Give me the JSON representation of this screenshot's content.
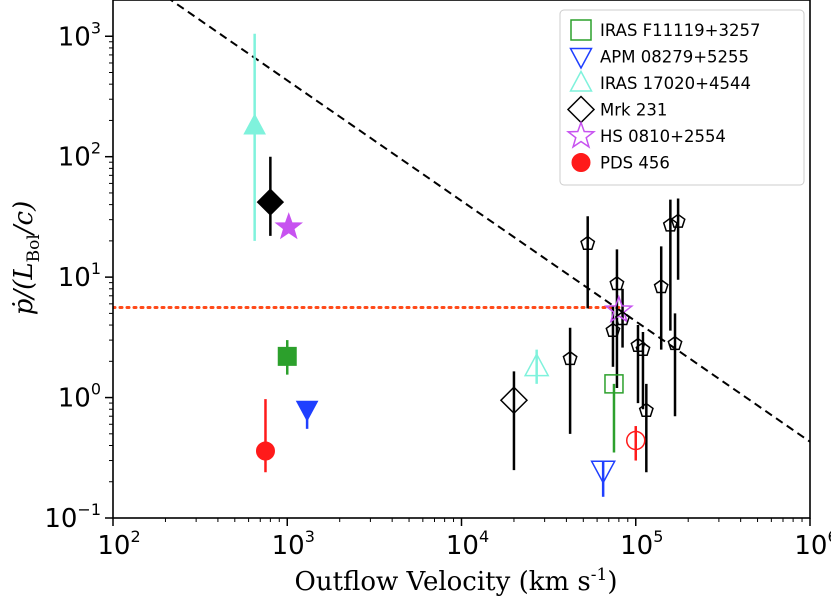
{
  "chart_data": {
    "type": "scatter",
    "xscale": "log",
    "yscale": "log",
    "xlim": [
      100,
      1000000
    ],
    "ylim": [
      0.1,
      2000
    ],
    "xlabel_main": "Outflow Velocity (km s",
    "xlabel_sup": "-1",
    "xlabel_end": ")",
    "ylabel_parts": [
      "ṗ/(L",
      "Bol",
      "/c)"
    ],
    "xticks": [
      {
        "value": 100,
        "base": "10",
        "exp": "2"
      },
      {
        "value": 1000,
        "base": "10",
        "exp": "3"
      },
      {
        "value": 10000,
        "base": "10",
        "exp": "4"
      },
      {
        "value": 100000,
        "base": "10",
        "exp": "5"
      },
      {
        "value": 1000000,
        "base": "10",
        "exp": "6"
      }
    ],
    "yticks": [
      {
        "value": 0.1,
        "base": "10",
        "exp": "−1"
      },
      {
        "value": 1,
        "base": "10",
        "exp": "0"
      },
      {
        "value": 10,
        "base": "10",
        "exp": "1"
      },
      {
        "value": 100,
        "base": "10",
        "exp": "2"
      },
      {
        "value": 1000,
        "base": "10",
        "exp": "3"
      }
    ],
    "reference_lines": [
      {
        "name": "dashed-diagonal",
        "style": "dashed",
        "color": "#000000",
        "points": [
          [
            100,
            4300
          ],
          [
            1000000,
            0.43
          ]
        ]
      },
      {
        "name": "dotted-horizontal",
        "style": "dotted",
        "color": "#ff4a1a",
        "points": [
          [
            100,
            5.6
          ],
          [
            80000,
            5.6
          ]
        ]
      }
    ],
    "series": [
      {
        "name": "IRAS F11119+3257",
        "marker": "square",
        "color": "#2ca02c",
        "points": [
          {
            "x": 1000,
            "y": 2.2,
            "yerr": [
              1.55,
              3.0
            ],
            "filled": true
          },
          {
            "x": 75000,
            "y": 1.3,
            "yerr": [
              0.35,
              1.3
            ],
            "filled": false
          }
        ]
      },
      {
        "name": "APM 08279+5255",
        "marker": "triangle-down",
        "color": "#1f3fff",
        "points": [
          {
            "x": 1300,
            "y": 0.8,
            "yerr": [
              0.55,
              0.8
            ],
            "filled": true
          },
          {
            "x": 65000,
            "y": 0.25,
            "yerr": [
              0.15,
              0.3
            ],
            "filled": false
          }
        ]
      },
      {
        "name": "IRAS 17020+4544",
        "marker": "triangle-up",
        "color": "#7ff2dc",
        "points": [
          {
            "x": 650,
            "y": 180,
            "yerr": [
              20,
              1050
            ],
            "filled": true
          },
          {
            "x": 27000,
            "y": 1.8,
            "yerr": [
              1.3,
              2.5
            ],
            "filled": false
          }
        ]
      },
      {
        "name": "Mrk 231",
        "marker": "diamond",
        "color": "#000000",
        "points": [
          {
            "x": 800,
            "y": 42,
            "yerr": [
              22,
              100
            ],
            "filled": true
          },
          {
            "x": 20000,
            "y": 0.95,
            "yerr": [
              0.25,
              1.65
            ],
            "filled": false
          }
        ]
      },
      {
        "name": "HS 0810+2554",
        "marker": "star",
        "color": "#c752f0",
        "points": [
          {
            "x": 1020,
            "y": 26,
            "yerr": null,
            "filled": true
          },
          {
            "x": 80000,
            "y": 5.3,
            "yerr": null,
            "filled": false
          }
        ]
      },
      {
        "name": "PDS 456",
        "marker": "circle",
        "color": "#ff1a1a",
        "points": [
          {
            "x": 750,
            "y": 0.36,
            "yerr": [
              0.24,
              0.97
            ],
            "filled": true
          },
          {
            "x": 100000,
            "y": 0.44,
            "yerr": [
              0.3,
              0.58
            ],
            "filled": false
          }
        ]
      },
      {
        "name": "other-sources",
        "marker": "pentagon",
        "color": "#000000",
        "legend": false,
        "points": [
          {
            "x": 53000,
            "y": 19,
            "yerr": [
              5.5,
              32
            ],
            "filled": false
          },
          {
            "x": 42000,
            "y": 2.1,
            "yerr": [
              0.5,
              3.8
            ],
            "filled": false
          },
          {
            "x": 74000,
            "y": 3.6,
            "yerr": [
              1.8,
              5.7
            ],
            "filled": false
          },
          {
            "x": 78000,
            "y": 8.8,
            "yerr": [
              1.2,
              17
            ],
            "filled": false
          },
          {
            "x": 84000,
            "y": 4.5,
            "yerr": [
              2.6,
              8.0
            ],
            "filled": false
          },
          {
            "x": 103000,
            "y": 2.7,
            "yerr": [
              0.9,
              4.0
            ],
            "filled": false
          },
          {
            "x": 110000,
            "y": 2.5,
            "yerr": [
              0.8,
              3.5
            ],
            "filled": false
          },
          {
            "x": 115000,
            "y": 0.78,
            "yerr": [
              0.24,
              1.3
            ],
            "filled": false
          },
          {
            "x": 140000,
            "y": 8.3,
            "yerr": [
              2.5,
              18
            ],
            "filled": false
          },
          {
            "x": 158000,
            "y": 27,
            "yerr": [
              3.6,
              44
            ],
            "filled": false
          },
          {
            "x": 168000,
            "y": 2.8,
            "yerr": [
              0.7,
              5.0
            ],
            "filled": false
          },
          {
            "x": 175000,
            "y": 29,
            "yerr": [
              9.5,
              45
            ],
            "filled": false
          }
        ]
      }
    ]
  }
}
